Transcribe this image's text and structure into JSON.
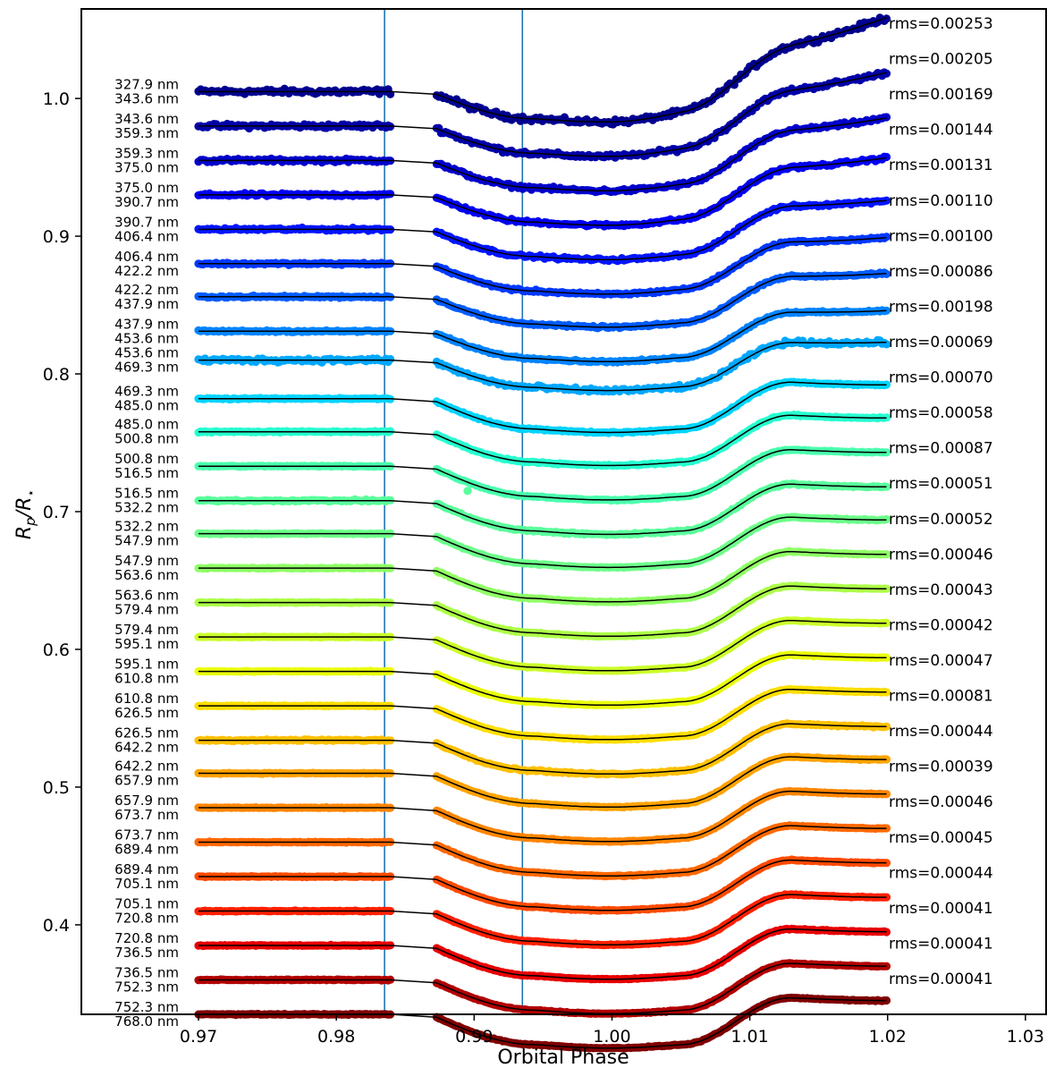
{
  "chart_data": {
    "type": "scatter",
    "title": "",
    "xlabel": "Orbital Phase",
    "ylabel_main": "R",
    "ylabel_sub_p": "p",
    "ylabel_sep": "/R",
    "ylabel_sub_star": "⋆",
    "xlim": [
      0.9615,
      1.0315
    ],
    "ylim": [
      0.335,
      1.065
    ],
    "x_ticks": [
      0.97,
      0.98,
      0.99,
      1.0,
      1.01,
      1.02,
      1.03
    ],
    "x_tick_labels": [
      "0.97",
      "0.98",
      "0.99",
      "1.00",
      "1.01",
      "1.02",
      "1.03"
    ],
    "y_ticks": [
      0.4,
      0.5,
      0.6,
      0.7,
      0.8,
      0.9,
      1.0
    ],
    "y_tick_labels": [
      "0.4",
      "0.5",
      "0.6",
      "0.7",
      "0.8",
      "0.9",
      "1.0"
    ],
    "vertical_lines": [
      0.9835,
      0.9935
    ],
    "vline_color": "#1f77b4",
    "data_gap": [
      0.984,
      0.9872
    ],
    "phase_range": [
      0.97,
      1.02
    ],
    "series": [
      {
        "wavelength_start": "327.9 nm",
        "wavelength_end": "343.6 nm",
        "rms": "rms=0.00253",
        "baseline": 1.005,
        "color": "#00008f"
      },
      {
        "wavelength_start": "343.6 nm",
        "wavelength_end": "359.3 nm",
        "rms": "rms=0.00205",
        "baseline": 0.98,
        "color": "#0000a8"
      },
      {
        "wavelength_start": "359.3 nm",
        "wavelength_end": "375.0 nm",
        "rms": "rms=0.00169",
        "baseline": 0.955,
        "color": "#0000cc"
      },
      {
        "wavelength_start": "375.0 nm",
        "wavelength_end": "390.7 nm",
        "rms": "rms=0.00144",
        "baseline": 0.93,
        "color": "#0000f1"
      },
      {
        "wavelength_start": "390.7 nm",
        "wavelength_end": "406.4 nm",
        "rms": "rms=0.00131",
        "baseline": 0.905,
        "color": "#0014ff"
      },
      {
        "wavelength_start": "406.4 nm",
        "wavelength_end": "422.2 nm",
        "rms": "rms=0.00110",
        "baseline": 0.88,
        "color": "#0038ff"
      },
      {
        "wavelength_start": "422.2 nm",
        "wavelength_end": "437.9 nm",
        "rms": "rms=0.00100",
        "baseline": 0.856,
        "color": "#005cff"
      },
      {
        "wavelength_start": "437.9 nm",
        "wavelength_end": "453.6 nm",
        "rms": "rms=0.00086",
        "baseline": 0.831,
        "color": "#0084ff"
      },
      {
        "wavelength_start": "453.6 nm",
        "wavelength_end": "469.3 nm",
        "rms": "rms=0.00198",
        "baseline": 0.81,
        "color": "#00a8ff"
      },
      {
        "wavelength_start": "469.3 nm",
        "wavelength_end": "485.0 nm",
        "rms": "rms=0.00069",
        "baseline": 0.782,
        "color": "#00d4ff"
      },
      {
        "wavelength_start": "485.0 nm",
        "wavelength_end": "500.8 nm",
        "rms": "rms=0.00070",
        "baseline": 0.758,
        "color": "#26ffd0"
      },
      {
        "wavelength_start": "500.8 nm",
        "wavelength_end": "516.5 nm",
        "rms": "rms=0.00058",
        "baseline": 0.733,
        "color": "#49ffad"
      },
      {
        "wavelength_start": "516.5 nm",
        "wavelength_end": "532.2 nm",
        "rms": "rms=0.00087",
        "baseline": 0.708,
        "color": "#5aff9c"
      },
      {
        "wavelength_start": "532.2 nm",
        "wavelength_end": "547.9 nm",
        "rms": "rms=0.00051",
        "baseline": 0.684,
        "color": "#6dff8a"
      },
      {
        "wavelength_start": "547.9 nm",
        "wavelength_end": "563.6 nm",
        "rms": "rms=0.00052",
        "baseline": 0.659,
        "color": "#90ff66"
      },
      {
        "wavelength_start": "563.6 nm",
        "wavelength_end": "579.4 nm",
        "rms": "rms=0.00046",
        "baseline": 0.634,
        "color": "#adff49"
      },
      {
        "wavelength_start": "579.4 nm",
        "wavelength_end": "595.1 nm",
        "rms": "rms=0.00043",
        "baseline": 0.609,
        "color": "#ccff2a"
      },
      {
        "wavelength_start": "595.1 nm",
        "wavelength_end": "610.8 nm",
        "rms": "rms=0.00042",
        "baseline": 0.584,
        "color": "#eaff0c"
      },
      {
        "wavelength_start": "610.8 nm",
        "wavelength_end": "626.5 nm",
        "rms": "rms=0.00047",
        "baseline": 0.559,
        "color": "#ffde00"
      },
      {
        "wavelength_start": "626.5 nm",
        "wavelength_end": "642.2 nm",
        "rms": "rms=0.00081",
        "baseline": 0.534,
        "color": "#ffc000"
      },
      {
        "wavelength_start": "642.2 nm",
        "wavelength_end": "657.9 nm",
        "rms": "rms=0.00044",
        "baseline": 0.51,
        "color": "#ffa300"
      },
      {
        "wavelength_start": "657.9 nm",
        "wavelength_end": "673.7 nm",
        "rms": "rms=0.00039",
        "baseline": 0.485,
        "color": "#ff8500"
      },
      {
        "wavelength_start": "673.7 nm",
        "wavelength_end": "689.4 nm",
        "rms": "rms=0.00046",
        "baseline": 0.46,
        "color": "#ff6800"
      },
      {
        "wavelength_start": "689.4 nm",
        "wavelength_end": "705.1 nm",
        "rms": "rms=0.00045",
        "baseline": 0.435,
        "color": "#ff4a00"
      },
      {
        "wavelength_start": "705.1 nm",
        "wavelength_end": "720.8 nm",
        "rms": "rms=0.00044",
        "baseline": 0.41,
        "color": "#ff2000"
      },
      {
        "wavelength_start": "720.8 nm",
        "wavelength_end": "736.5 nm",
        "rms": "rms=0.00041",
        "baseline": 0.385,
        "color": "#e80000"
      },
      {
        "wavelength_start": "736.5 nm",
        "wavelength_end": "752.3 nm",
        "rms": "rms=0.00041",
        "baseline": 0.36,
        "color": "#b20000"
      },
      {
        "wavelength_start": "752.3 nm",
        "wavelength_end": "768.0 nm",
        "rms": "rms=0.00041",
        "baseline": 0.335,
        "color": "#800000"
      }
    ]
  }
}
